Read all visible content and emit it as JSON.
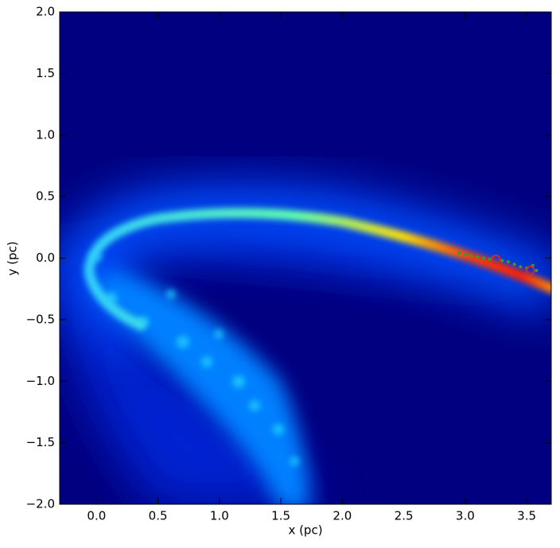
{
  "chart_data": {
    "type": "scatter",
    "xlabel": "x (pc)",
    "ylabel": "y (pc)",
    "xlim": [
      -0.3,
      3.7
    ],
    "ylim": [
      -2.0,
      2.0
    ],
    "xticks": [
      {
        "value": 0,
        "label": "0.0"
      },
      0.5,
      {
        "value": 1,
        "label": "1.0"
      },
      1.5,
      {
        "value": 2,
        "label": "2.0"
      },
      2.5,
      {
        "value": 3,
        "label": "3.0"
      },
      3.5
    ],
    "yticks": [
      {
        "value": -2,
        "label": "−2.0"
      },
      {
        "value": -1.5,
        "label": "−1.5"
      },
      {
        "value": -1,
        "label": "−1.0"
      },
      {
        "value": -0.5,
        "label": "−0.5"
      },
      {
        "value": 0,
        "label": "0.0"
      },
      0.5,
      {
        "value": 1,
        "label": "1.0"
      },
      1.5,
      {
        "value": 2,
        "label": "2.0"
      }
    ],
    "series": [
      {
        "color": "#2ca02c",
        "marker": "dot",
        "x": [
          2.95,
          3.0,
          3.05,
          3.1,
          3.15,
          3.2,
          3.3,
          3.35,
          3.4,
          3.45,
          3.5,
          3.55,
          3.58
        ],
        "values": [
          0.04,
          0.03,
          0.02,
          0.01,
          0.0,
          -0.01,
          -0.02,
          -0.03,
          -0.05,
          -0.07,
          -0.08,
          -0.06,
          -0.1
        ]
      },
      {
        "color": "#d62728",
        "marker": "open-circle",
        "x": [
          3.25,
          3.53
        ],
        "values": [
          -0.01,
          -0.1
        ]
      }
    ]
  }
}
